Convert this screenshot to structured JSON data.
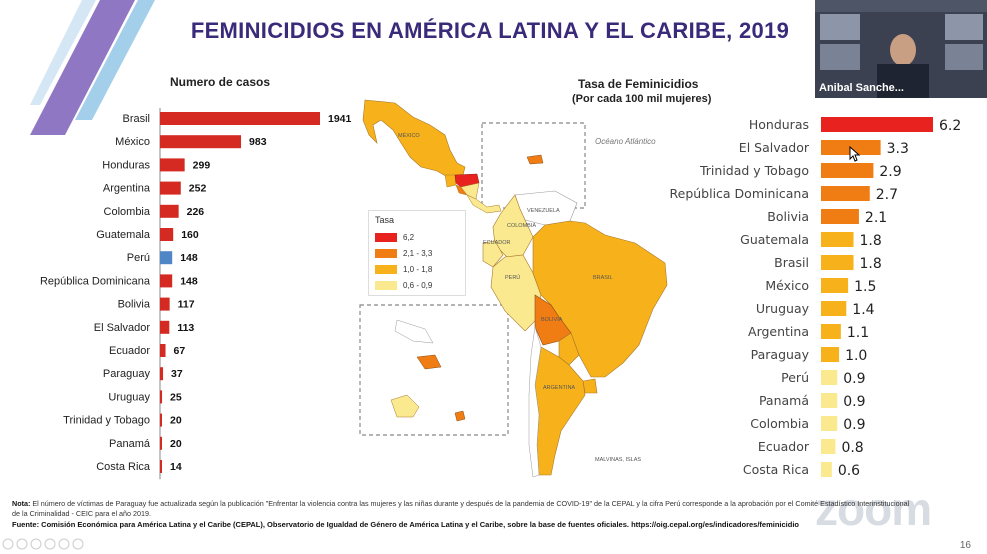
{
  "slide": {
    "title": "FEMINICIDIOS EN AMÉRICA LATINA Y EL CARIBE, 2019",
    "page_number": "16",
    "note_label": "Nota:",
    "note_text": "El número de víctimas de Paraguay fue actualizada según la publicación \"Enfrentar la violencia contra las mujeres y las niñas durante y después de la pandemia de COVID-19\" de la CEPAL y la cifra Perú corresponde a la aprobación por el Comité Estadístico Interinstitucional de la Criminalidad - CEIC para el año 2019.",
    "source_text": "Fuente: Comisión Económica para América Latina y el Caribe (CEPAL), Observatorio de Igualdad de Género de América Latina y el Caribe, sobre la base de fuentes oficiales. https://oig.cepal.org/es/indicadores/feminicidio"
  },
  "video": {
    "participant_name": "Anibal Sanche...",
    "watermark": "zoom"
  },
  "map": {
    "legend_title": "Tasa",
    "legend": [
      {
        "label": "6,2",
        "color": "#e8231f"
      },
      {
        "label": "2,1 - 3,3",
        "color": "#f07d14"
      },
      {
        "label": "1,0 - 1,8",
        "color": "#f7b21b"
      },
      {
        "label": "0,6 - 0,9",
        "color": "#fbe98f"
      }
    ],
    "labels": [
      "MÉXICO",
      "VENEZUELA",
      "COLOMBIA",
      "ECUADOR",
      "PERÚ",
      "BRASIL",
      "BOLIVIA",
      "ARGENTINA",
      "MALVINAS, ISLAS",
      "Océano Atlántico"
    ]
  },
  "chart_data": [
    {
      "type": "bar",
      "orientation": "horizontal",
      "title": "Numero de casos",
      "categories": [
        "Brasil",
        "México",
        "Honduras",
        "Argentina",
        "Colombia",
        "Guatemala",
        "Perú",
        "República Dominicana",
        "Bolivia",
        "El Salvador",
        "Ecuador",
        "Paraguay",
        "Uruguay",
        "Trinidad y Tobago",
        "Panamá",
        "Costa Rica"
      ],
      "values": [
        1941,
        983,
        299,
        252,
        226,
        160,
        148,
        148,
        117,
        113,
        67,
        37,
        25,
        20,
        20,
        14
      ],
      "colors": [
        "#d42a22",
        "#d42a22",
        "#d42a22",
        "#d42a22",
        "#d42a22",
        "#d42a22",
        "#4f86c6",
        "#d42a22",
        "#d42a22",
        "#d42a22",
        "#d42a22",
        "#d42a22",
        "#d42a22",
        "#d42a22",
        "#d42a22",
        "#d42a22"
      ],
      "xlim": [
        0,
        1941
      ]
    },
    {
      "type": "bar",
      "orientation": "horizontal",
      "title": "Tasa de Feminicidios",
      "subtitle": "(Por cada 100 mil mujeres)",
      "categories": [
        "Honduras",
        "El Salvador",
        "Trinidad y Tobago",
        "República Dominicana",
        "Bolivia",
        "Guatemala",
        "Brasil",
        "México",
        "Uruguay",
        "Argentina",
        "Paraguay",
        "Perú",
        "Panamá",
        "Colombia",
        "Ecuador",
        "Costa Rica"
      ],
      "values": [
        6.2,
        3.3,
        2.9,
        2.7,
        2.1,
        1.8,
        1.8,
        1.5,
        1.4,
        1.1,
        1.0,
        0.9,
        0.9,
        0.9,
        0.8,
        0.6
      ],
      "value_labels": [
        "6.2",
        "3.3",
        "2.9",
        "2.7",
        "2.1",
        "1.8",
        "1.8",
        "1.5",
        "1.4",
        "1.1",
        "1.0",
        "0.9",
        "0.9",
        "0.9",
        "0.8",
        "0.6"
      ],
      "colors": [
        "#e8231f",
        "#f07d14",
        "#f07d14",
        "#f07d14",
        "#f07d14",
        "#f7b21b",
        "#f7b21b",
        "#f7b21b",
        "#f7b21b",
        "#f7b21b",
        "#f7b21b",
        "#fbe98f",
        "#fbe98f",
        "#fbe98f",
        "#fbe98f",
        "#fbe98f"
      ],
      "xlim": [
        0,
        6.2
      ]
    }
  ]
}
